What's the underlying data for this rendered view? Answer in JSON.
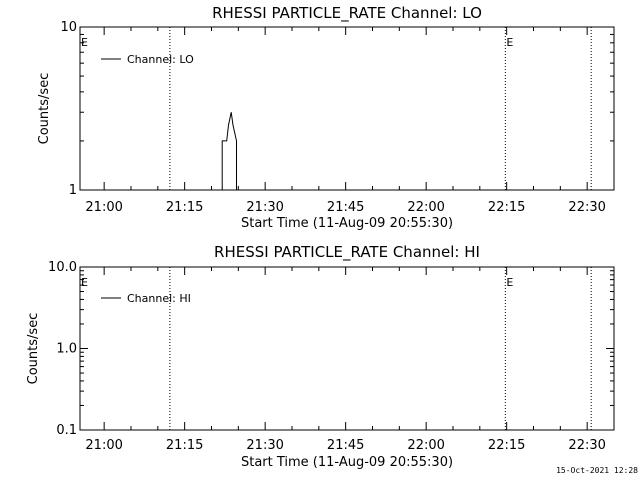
{
  "footer": {
    "timestamp": "15-Oct-2021 12:28"
  },
  "chart_data": [
    {
      "type": "line",
      "title": "RHESSI PARTICLE_RATE Channel: LO",
      "xlabel": "Start Time (11-Aug-09 20:55:30)",
      "ylabel": "Counts/sec",
      "yscale": "log",
      "ylim": [
        1,
        10
      ],
      "ytick_labels": [
        "10",
        "1"
      ],
      "ytick_values": [
        10,
        1
      ],
      "xlim": [
        "20:55:30",
        "22:35:00"
      ],
      "xtick_labels": [
        "21:00",
        "21:15",
        "21:30",
        "21:45",
        "22:00",
        "22:15",
        "22:30"
      ],
      "legend": {
        "position": "top-left",
        "entries": [
          "Channel: LO"
        ]
      },
      "markers": [
        {
          "label": "E",
          "time": "20:55:30"
        },
        {
          "label": "E",
          "time": "22:14:45"
        }
      ],
      "vlines_dotted": [
        "21:12:15",
        "22:14:45",
        "22:30:45"
      ],
      "series": [
        {
          "name": "Channel: LO",
          "step": true,
          "x": [
            "21:22:00",
            "21:22:00",
            "21:22:50",
            "21:23:10",
            "21:23:40",
            "21:24:00",
            "21:24:40",
            "21:24:40"
          ],
          "values": [
            1,
            2,
            2,
            2.5,
            3,
            2.5,
            2,
            1
          ]
        }
      ]
    },
    {
      "type": "line",
      "title": "RHESSI PARTICLE_RATE Channel: HI",
      "xlabel": "Start Time (11-Aug-09 20:55:30)",
      "ylabel": "Counts/sec",
      "yscale": "log",
      "ylim": [
        0.1,
        10
      ],
      "ytick_labels": [
        "10.0",
        "1.0",
        "0.1"
      ],
      "ytick_values": [
        10,
        1,
        0.1
      ],
      "xlim": [
        "20:55:30",
        "22:35:00"
      ],
      "xtick_labels": [
        "21:00",
        "21:15",
        "21:30",
        "21:45",
        "22:00",
        "22:15",
        "22:30"
      ],
      "legend": {
        "position": "top-left",
        "entries": [
          "Channel: HI"
        ]
      },
      "markers": [
        {
          "label": "E",
          "time": "20:55:30"
        },
        {
          "label": "E",
          "time": "22:14:45"
        }
      ],
      "vlines_dotted": [
        "21:12:15",
        "22:14:45",
        "22:30:45"
      ],
      "series": [
        {
          "name": "Channel: HI",
          "step": true,
          "x": [],
          "values": []
        }
      ]
    }
  ]
}
